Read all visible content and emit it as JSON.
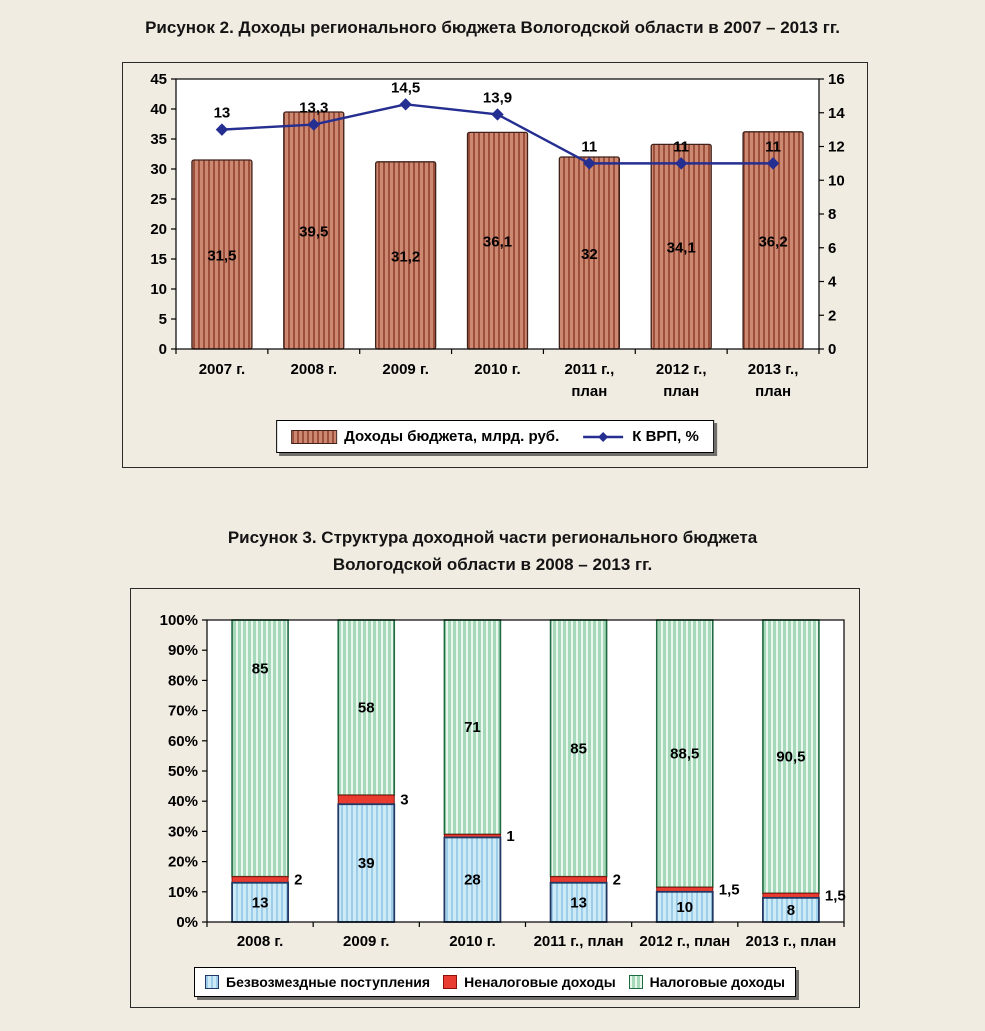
{
  "page": {
    "background": "#f1ece2"
  },
  "figure2": {
    "title": "Рисунок 2. Доходы регионального бюджета Вологодской области в 2007 – 2013 гг."
  },
  "figure3": {
    "title_line1": "Рисунок 3. Структура доходной части регионального бюджета",
    "title_line2": "Вологодской области в 2008 – 2013 гг."
  },
  "chart_data": [
    {
      "type": "bar",
      "subtype": "bar-plus-line-two-axes",
      "categories": [
        [
          "2007 г."
        ],
        [
          "2008 г."
        ],
        [
          "2009 г."
        ],
        [
          "2010 г."
        ],
        [
          "2011 г.,",
          "план"
        ],
        [
          "2012 г.,",
          "план"
        ],
        [
          "2013 г.,",
          "план"
        ]
      ],
      "bar_series": {
        "name": "Доходы бюджета, млрд. руб.",
        "axis": "left",
        "values": [
          31.5,
          39.5,
          31.2,
          36.1,
          32,
          34.1,
          36.2
        ],
        "labels": [
          "31,5",
          "39,5",
          "31,2",
          "36,1",
          "32",
          "34,1",
          "36,2"
        ],
        "color": "#cd8872",
        "stripe": "#9c4f3a",
        "border": "#40221a"
      },
      "line_series": {
        "name": "К ВРП, %",
        "axis": "right",
        "values": [
          13,
          13.3,
          14.5,
          13.9,
          11,
          11,
          11
        ],
        "labels": [
          "13",
          "13,3",
          "14,5",
          "13,9",
          "11",
          "11",
          "11"
        ],
        "color": "#252e91"
      },
      "left_axis": {
        "min": 0,
        "max": 45,
        "step": 5,
        "tick_labels": [
          "0",
          "5",
          "10",
          "15",
          "20",
          "25",
          "30",
          "35",
          "40",
          "45"
        ]
      },
      "right_axis": {
        "min": 0,
        "max": 16,
        "step": 2,
        "tick_labels": [
          "0",
          "2",
          "4",
          "6",
          "8",
          "10",
          "12",
          "14",
          "16"
        ]
      },
      "grid": false,
      "legend_position": "bottom",
      "plot_background": "#ffffff"
    },
    {
      "type": "bar",
      "subtype": "stacked-100",
      "categories": [
        "2008 г.",
        "2009 г.",
        "2010 г.",
        "2011 г., план",
        "2012 г., план",
        "2013 г., план"
      ],
      "series": [
        {
          "name": "Безвозмездные поступления",
          "values": [
            13,
            39,
            28,
            13,
            10,
            8
          ],
          "labels": [
            "13",
            "39",
            "28",
            "13",
            "10",
            "8"
          ],
          "color": "#cdeaf7",
          "stripe": "#9dcde9",
          "border": "#203864"
        },
        {
          "name": "Неналоговые доходы",
          "values": [
            2,
            3,
            1,
            2,
            1.5,
            1.5
          ],
          "labels": [
            "2",
            "3",
            "1",
            "2",
            "1,5",
            "1,5"
          ],
          "color": "#ea3b30",
          "border": "#8a120b"
        },
        {
          "name": "Налоговые доходы",
          "values": [
            85,
            58,
            71,
            85,
            88.5,
            90.5
          ],
          "labels": [
            "85",
            "58",
            "71",
            "85",
            "88,5",
            "90,5"
          ],
          "color": "#a6d9ba",
          "stripe": "#e9f7ef",
          "border": "#1e6b41"
        }
      ],
      "y_axis": {
        "min": 0,
        "max": 100,
        "step": 10,
        "tick_labels": [
          "0%",
          "10%",
          "20%",
          "30%",
          "40%",
          "50%",
          "60%",
          "70%",
          "80%",
          "90%",
          "100%"
        ]
      },
      "grid": false,
      "legend_position": "bottom",
      "plot_background": "#ffffff",
      "layout_hints": {
        "green_label_levels": [
          84,
          null,
          null,
          null,
          null,
          null
        ]
      }
    }
  ]
}
